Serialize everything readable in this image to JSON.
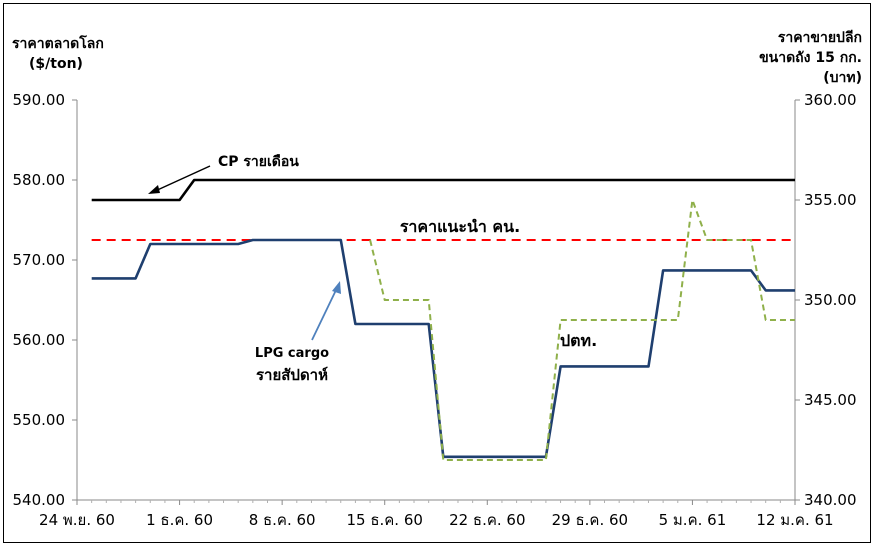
{
  "chart_data": {
    "type": "line",
    "y_left_label_lines": [
      "ราคาตลาดโลก",
      "($/ton)"
    ],
    "y_right_label_lines": [
      "ราคาขายปลีก",
      "ขนาดถัง 15 กก.",
      "(บาท)"
    ],
    "x_tick_labels": [
      "24 พ.ย. 60",
      "1 ธ.ค. 60",
      "8 ธ.ค. 60",
      "15 ธ.ค. 60",
      "22 ธ.ค. 60",
      "29 ธ.ค. 60",
      "5 ม.ค. 61",
      "12 ม.ค. 61"
    ],
    "x_range_days": [
      0,
      49
    ],
    "y_left": {
      "min": 540,
      "max": 590,
      "ticks": [
        "540.00",
        "550.00",
        "560.00",
        "570.00",
        "580.00",
        "590.00"
      ]
    },
    "y_right": {
      "min": 340,
      "max": 360,
      "ticks": [
        "340.00",
        "345.00",
        "350.00",
        "355.00",
        "360.00"
      ]
    },
    "reference_line": {
      "label": "ราคาแนะนำ คน.",
      "value_left_axis": 572.5,
      "color": "#ff0000"
    },
    "series": [
      {
        "name": "CP รายเดือน",
        "axis": "left",
        "color": "#000000",
        "points": [
          [
            1,
            577.5
          ],
          [
            7,
            577.5
          ],
          [
            8,
            580
          ],
          [
            49,
            580
          ]
        ]
      },
      {
        "name_lines": [
          "LPG cargo",
          "รายสัปดาห์"
        ],
        "axis": "left",
        "color": "#1f3f6f",
        "points": [
          [
            1,
            567.7
          ],
          [
            4,
            567.7
          ],
          [
            5,
            572
          ],
          [
            11,
            572
          ],
          [
            12,
            572.5
          ],
          [
            18,
            572.5
          ],
          [
            19,
            562
          ],
          [
            24,
            562
          ],
          [
            25,
            545.4
          ],
          [
            32,
            545.4
          ],
          [
            33,
            556.7
          ],
          [
            39,
            556.7
          ],
          [
            40,
            568.7
          ],
          [
            46,
            568.7
          ],
          [
            47,
            566.2
          ],
          [
            49,
            566.2
          ]
        ]
      },
      {
        "name": "ปตท.",
        "axis": "right",
        "color": "#8fb04a",
        "dashed": true,
        "points": [
          [
            20,
            353
          ],
          [
            21,
            350
          ],
          [
            24,
            350
          ],
          [
            25,
            342
          ],
          [
            32,
            342
          ],
          [
            33,
            349
          ],
          [
            41,
            349
          ],
          [
            42,
            355
          ],
          [
            43,
            353
          ],
          [
            46,
            353
          ],
          [
            47,
            349
          ],
          [
            49,
            349
          ]
        ]
      }
    ],
    "annotations": [
      {
        "text": "CP รายเดือน",
        "color": "#000000"
      },
      {
        "text": "ราคาแนะนำ คน.",
        "color": "#ff0000"
      },
      {
        "text_lines": [
          "LPG cargo",
          "รายสัปดาห์"
        ],
        "color": "#4f81bd"
      },
      {
        "text": "ปตท.",
        "color": "#8fb04a"
      }
    ]
  }
}
